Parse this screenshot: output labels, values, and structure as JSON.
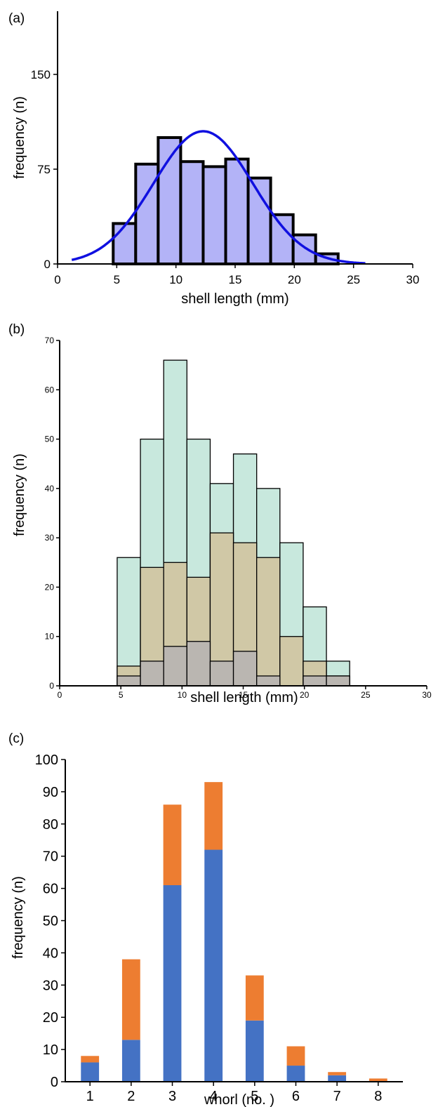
{
  "chart_data": [
    {
      "panel_label": "(a)",
      "type": "bar",
      "title": "",
      "xlabel": "shell length (mm)",
      "ylabel": "frequency (n)",
      "xlim": [
        0,
        30
      ],
      "ylim": [
        0,
        200
      ],
      "xticks": [
        0,
        5,
        10,
        15,
        20,
        25,
        30
      ],
      "yticks": [
        0,
        75,
        150
      ],
      "bin_width": 1.9,
      "bins": [
        {
          "start": 4.7,
          "value": 32
        },
        {
          "start": 6.6,
          "value": 79
        },
        {
          "start": 8.5,
          "value": 100
        },
        {
          "start": 10.4,
          "value": 81
        },
        {
          "start": 12.3,
          "value": 77
        },
        {
          "start": 14.2,
          "value": 83
        },
        {
          "start": 16.1,
          "value": 68
        },
        {
          "start": 18.0,
          "value": 39
        },
        {
          "start": 19.9,
          "value": 23
        },
        {
          "start": 21.8,
          "value": 8
        }
      ],
      "fit_curve": {
        "type": "normal",
        "mean": 12.3,
        "sd": 4.2,
        "peak": 105,
        "x_range": [
          1.2,
          26.0
        ]
      },
      "colors": {
        "bar": "#b3b3f7",
        "bar_edge": "#000000",
        "curve": "#1010e0"
      }
    },
    {
      "panel_label": "(b)",
      "type": "bar",
      "title": "",
      "xlabel": "shell length (mm)",
      "ylabel": "frequency (n)",
      "xlim": [
        0,
        30
      ],
      "ylim": [
        0,
        70
      ],
      "xticks": [
        0,
        5,
        10,
        15,
        20,
        25,
        30
      ],
      "yticks": [
        0,
        10,
        20,
        30,
        40,
        50,
        60,
        70
      ],
      "bin_width": 1.9,
      "bin_starts": [
        4.7,
        6.6,
        8.5,
        10.4,
        12.3,
        14.2,
        16.1,
        18.0,
        19.9,
        21.8
      ],
      "series": [
        {
          "values": [
            26,
            50,
            66,
            50,
            41,
            47,
            40,
            29,
            16,
            5
          ],
          "color": "#c8e8dd"
        },
        {
          "values": [
            4,
            24,
            25,
            22,
            31,
            29,
            26,
            10,
            5,
            2
          ],
          "color": "#d0c8a6"
        },
        {
          "values": [
            2,
            5,
            8,
            9,
            5,
            7,
            2,
            0,
            2,
            2
          ],
          "color": "#bab6b1"
        }
      ]
    },
    {
      "panel_label": "(c)",
      "type": "bar",
      "stacked": true,
      "title": "",
      "xlabel": "whorl (no. )",
      "ylabel": "frequency (n)",
      "categories": [
        "1",
        "2",
        "3",
        "4",
        "5",
        "6",
        "7",
        "8"
      ],
      "ylim": [
        0,
        100
      ],
      "yticks": [
        0,
        10,
        20,
        30,
        40,
        50,
        60,
        70,
        80,
        90,
        100
      ],
      "series": [
        {
          "values": [
            6,
            13,
            61,
            72,
            19,
            5,
            2,
            0
          ],
          "color": "#4472c4"
        },
        {
          "values": [
            2,
            25,
            25,
            21,
            14,
            6,
            1,
            1
          ],
          "color": "#ed7d31"
        }
      ]
    }
  ]
}
